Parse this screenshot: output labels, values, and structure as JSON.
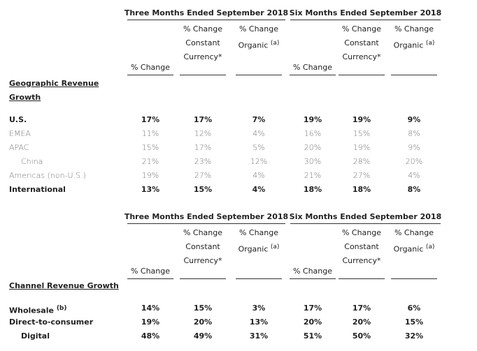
{
  "tables": [
    {
      "group_headers": [
        "Three Months Ended September 2018",
        "Six Months Ended September 2018"
      ],
      "columns": [
        {
          "lines": [
            "% Change"
          ]
        },
        {
          "lines": [
            "% Change",
            "Constant",
            "Currency*"
          ]
        },
        {
          "lines": [
            "% Change",
            "Organic"
          ],
          "sup": "(a)"
        },
        {
          "lines": [
            "% Change"
          ]
        },
        {
          "lines": [
            "% Change",
            "Constant",
            "Currency*"
          ]
        },
        {
          "lines": [
            "% Change",
            "Organic"
          ],
          "sup": "(a)"
        }
      ],
      "section_title": "Geographic Revenue Growth",
      "rows": [
        {
          "label": "U.S.",
          "bold": true,
          "values": [
            "17%",
            "17%",
            "7%",
            "19%",
            "19%",
            "9%"
          ]
        },
        {
          "label": "EMEA",
          "bold": false,
          "values": [
            "11%",
            "12%",
            "4%",
            "16%",
            "15%",
            "8%"
          ]
        },
        {
          "label": "APAC",
          "bold": false,
          "values": [
            "15%",
            "17%",
            "5%",
            "20%",
            "19%",
            "9%"
          ]
        },
        {
          "label": "China",
          "bold": false,
          "indent": true,
          "values": [
            "21%",
            "23%",
            "12%",
            "30%",
            "28%",
            "20%"
          ]
        },
        {
          "label": "Americas (non-U.S.)",
          "bold": false,
          "values": [
            "19%",
            "27%",
            "4%",
            "21%",
            "27%",
            "4%"
          ]
        },
        {
          "label": "International",
          "bold": true,
          "values": [
            "13%",
            "15%",
            "4%",
            "18%",
            "18%",
            "8%"
          ]
        }
      ]
    },
    {
      "group_headers": [
        "Three Months Ended September 2018",
        "Six Months Ended September 2018"
      ],
      "columns": [
        {
          "lines": [
            "% Change"
          ]
        },
        {
          "lines": [
            "% Change",
            "Constant",
            "Currency*"
          ]
        },
        {
          "lines": [
            "% Change",
            "Organic"
          ],
          "sup": "(a)"
        },
        {
          "lines": [
            "% Change"
          ]
        },
        {
          "lines": [
            "% Change",
            "Constant",
            "Currency*"
          ]
        },
        {
          "lines": [
            "% Change",
            "Organic"
          ],
          "sup": "(a)"
        }
      ],
      "section_title": "Channel Revenue Growth",
      "rows": [
        {
          "label": "Wholesale",
          "label_sup": "(b)",
          "bold": true,
          "values": [
            "14%",
            "15%",
            "3%",
            "17%",
            "17%",
            "6%"
          ]
        },
        {
          "label": "Direct-to-consumer",
          "bold": true,
          "values": [
            "19%",
            "20%",
            "13%",
            "20%",
            "20%",
            "15%"
          ]
        },
        {
          "label": "Digital",
          "bold": true,
          "indent": true,
          "values": [
            "48%",
            "49%",
            "31%",
            "51%",
            "50%",
            "32%"
          ]
        }
      ]
    }
  ]
}
